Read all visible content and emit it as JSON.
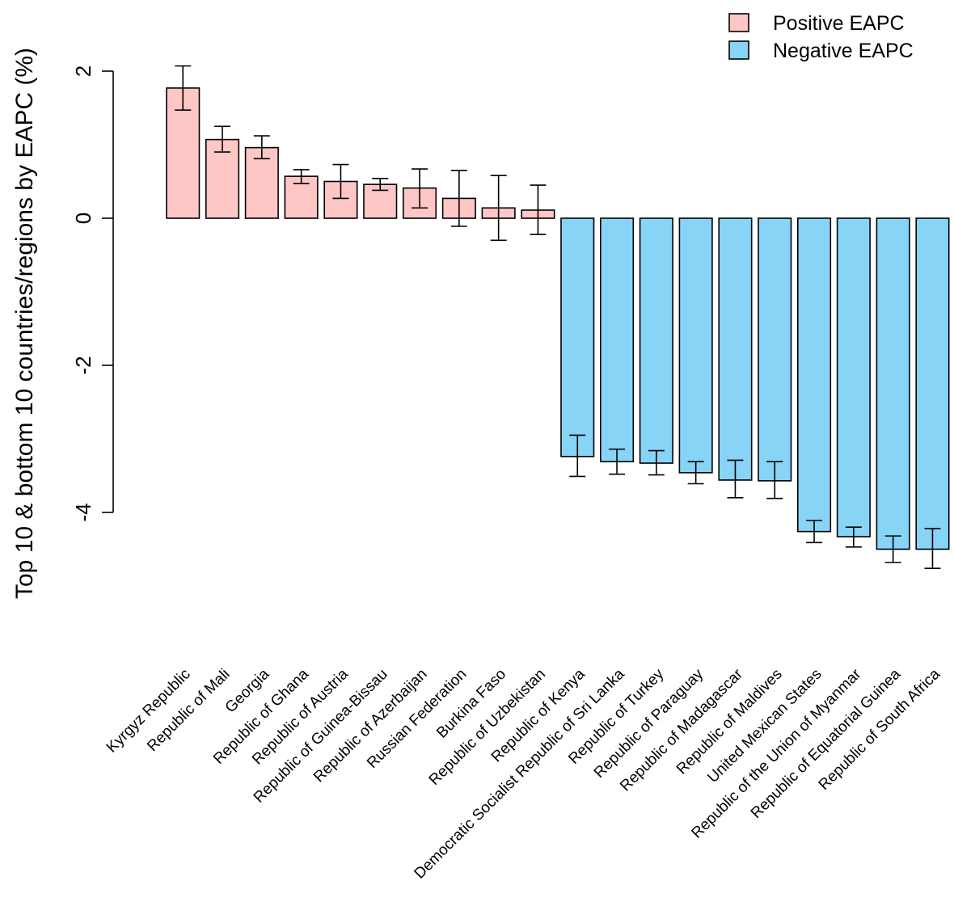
{
  "chart_data": {
    "type": "bar",
    "ylabel": "Top 10 & bottom 10 countries/regions by EAPC (%)",
    "ylim": [
      -4.9,
      2.1
    ],
    "yticks": [
      2,
      0,
      -2,
      -4
    ],
    "legend": {
      "placement": "top-right",
      "entries": [
        {
          "label": "Positive EAPC",
          "color": "#FFC6C6"
        },
        {
          "label": "Negative EAPC",
          "color": "#87D4F6"
        }
      ]
    },
    "categories": [
      "Kyrgyz Republic",
      "Republic of Mali",
      "Georgia",
      "Republic of Ghana",
      "Republic of Austria",
      "Republic of Guinea-Bissau",
      "Republic of Azerbaijan",
      "Russian Federation",
      "Burkina Faso",
      "Republic of Uzbekistan",
      "Republic of Kenya",
      "Democratic Socialist Republic of Sri Lanka",
      "Republic of Turkey",
      "Republic of Paraguay",
      "Republic of Madagascar",
      "Republic of Maldives",
      "United Mexican States",
      "Republic of the Union of Myanmar",
      "Republic of Equatorial Guinea",
      "Republic of South Africa"
    ],
    "values": [
      1.77,
      1.07,
      0.96,
      0.57,
      0.5,
      0.46,
      0.41,
      0.27,
      0.14,
      0.11,
      -3.24,
      -3.31,
      -3.33,
      -3.46,
      -3.56,
      -3.57,
      -4.26,
      -4.33,
      -4.5,
      -4.5
    ],
    "lower": [
      1.47,
      0.9,
      0.81,
      0.47,
      0.27,
      0.38,
      0.14,
      -0.11,
      -0.3,
      -0.22,
      -3.51,
      -3.48,
      -3.49,
      -3.61,
      -3.8,
      -3.81,
      -4.41,
      -4.47,
      -4.68,
      -4.76
    ],
    "upper": [
      2.07,
      1.25,
      1.12,
      0.66,
      0.73,
      0.54,
      0.67,
      0.65,
      0.58,
      0.45,
      -2.95,
      -3.14,
      -3.16,
      -3.31,
      -3.29,
      -3.31,
      -4.11,
      -4.2,
      -4.32,
      -4.22
    ]
  }
}
